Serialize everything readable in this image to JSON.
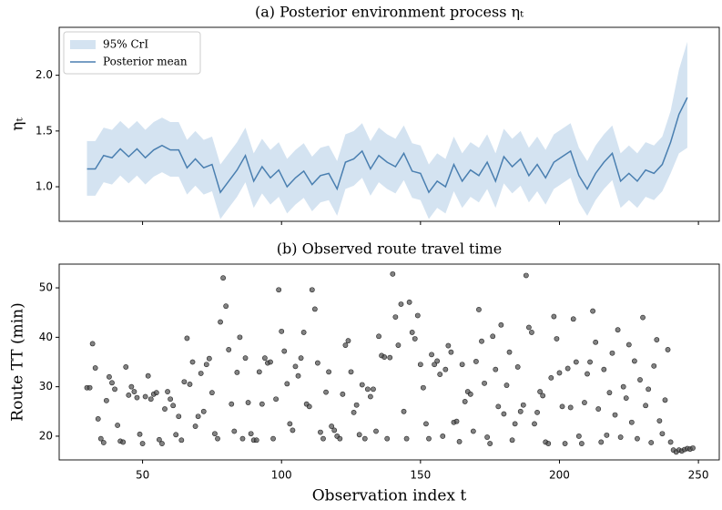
{
  "chart_data": [
    {
      "type": "line",
      "title": "(a) Posterior environment process ηₜ",
      "ylabel": "ηₜ",
      "x": [
        30,
        33,
        36,
        39,
        42,
        45,
        48,
        51,
        54,
        57,
        60,
        63,
        66,
        69,
        72,
        75,
        78,
        81,
        84,
        87,
        90,
        93,
        96,
        99,
        102,
        105,
        108,
        111,
        114,
        117,
        120,
        123,
        126,
        129,
        132,
        135,
        138,
        141,
        144,
        147,
        150,
        153,
        156,
        159,
        162,
        165,
        168,
        171,
        174,
        177,
        180,
        183,
        186,
        189,
        192,
        195,
        198,
        201,
        204,
        207,
        210,
        213,
        216,
        219,
        222,
        225,
        228,
        231,
        234,
        237,
        240,
        243,
        246
      ],
      "series": [
        {
          "name": "Posterior mean",
          "color": "#4a7fb0",
          "values": [
            1.16,
            1.16,
            1.28,
            1.26,
            1.34,
            1.27,
            1.34,
            1.26,
            1.33,
            1.37,
            1.33,
            1.33,
            1.17,
            1.25,
            1.17,
            1.2,
            0.95,
            1.05,
            1.15,
            1.28,
            1.05,
            1.18,
            1.08,
            1.15,
            1.0,
            1.08,
            1.14,
            1.02,
            1.1,
            1.12,
            0.98,
            1.22,
            1.25,
            1.32,
            1.16,
            1.28,
            1.22,
            1.18,
            1.3,
            1.14,
            1.12,
            0.95,
            1.05,
            1.0,
            1.2,
            1.05,
            1.15,
            1.1,
            1.22,
            1.05,
            1.27,
            1.18,
            1.25,
            1.1,
            1.2,
            1.08,
            1.22,
            1.27,
            1.32,
            1.1,
            0.98,
            1.12,
            1.22,
            1.3,
            1.05,
            1.12,
            1.05,
            1.15,
            1.12,
            1.2,
            1.4,
            1.65,
            1.8
          ]
        }
      ],
      "band": {
        "name": "95% CrI",
        "color": "#d4e3f1",
        "upper": [
          1.41,
          1.41,
          1.53,
          1.51,
          1.59,
          1.52,
          1.59,
          1.51,
          1.58,
          1.62,
          1.58,
          1.58,
          1.42,
          1.5,
          1.42,
          1.45,
          1.2,
          1.3,
          1.4,
          1.53,
          1.3,
          1.43,
          1.33,
          1.4,
          1.25,
          1.33,
          1.39,
          1.27,
          1.35,
          1.37,
          1.23,
          1.47,
          1.5,
          1.57,
          1.41,
          1.53,
          1.47,
          1.43,
          1.55,
          1.39,
          1.37,
          1.2,
          1.3,
          1.25,
          1.45,
          1.3,
          1.4,
          1.35,
          1.47,
          1.3,
          1.52,
          1.43,
          1.5,
          1.35,
          1.45,
          1.33,
          1.47,
          1.52,
          1.57,
          1.35,
          1.23,
          1.37,
          1.47,
          1.55,
          1.3,
          1.37,
          1.3,
          1.4,
          1.37,
          1.45,
          1.68,
          2.05,
          2.3
        ],
        "lower": [
          0.92,
          0.92,
          1.04,
          1.02,
          1.1,
          1.03,
          1.1,
          1.02,
          1.09,
          1.13,
          1.09,
          1.09,
          0.93,
          1.01,
          0.93,
          0.96,
          0.71,
          0.81,
          0.91,
          1.04,
          0.81,
          0.94,
          0.84,
          0.91,
          0.76,
          0.84,
          0.9,
          0.78,
          0.86,
          0.88,
          0.74,
          0.98,
          1.01,
          1.08,
          0.92,
          1.04,
          0.98,
          0.94,
          1.06,
          0.9,
          0.88,
          0.71,
          0.81,
          0.76,
          0.96,
          0.81,
          0.91,
          0.86,
          0.98,
          0.81,
          1.03,
          0.94,
          1.01,
          0.86,
          0.96,
          0.84,
          0.98,
          1.03,
          1.08,
          0.86,
          0.74,
          0.88,
          0.98,
          1.06,
          0.81,
          0.88,
          0.81,
          0.91,
          0.88,
          0.96,
          1.12,
          1.3,
          1.35
        ]
      },
      "xlim": [
        20,
        257.5
      ],
      "ylim": [
        0.69,
        2.43
      ],
      "xticks": [
        50,
        100,
        150,
        200,
        250
      ],
      "yticks": [
        {
          "value": 1,
          "label": "1.0"
        },
        {
          "value": 1.5,
          "label": "1.5"
        },
        {
          "value": 2,
          "label": "2.0"
        }
      ],
      "legend": "upper left"
    },
    {
      "type": "scatter",
      "title": "(b) Observed route travel time",
      "xlabel": "Observation index t",
      "ylabel": "Route TT (min)",
      "color": "#4d4d4d",
      "x": [
        30,
        31,
        32,
        33,
        34,
        35,
        36,
        37,
        38,
        39,
        40,
        41,
        42,
        43,
        44,
        45,
        46,
        47,
        48,
        49,
        50,
        51,
        52,
        53,
        54,
        55,
        56,
        57,
        58,
        59,
        60,
        61,
        62,
        63,
        64,
        65,
        66,
        67,
        68,
        69,
        70,
        71,
        72,
        73,
        74,
        75,
        76,
        77,
        78,
        79,
        80,
        81,
        82,
        83,
        84,
        85,
        86,
        87,
        88,
        89,
        90,
        91,
        92,
        93,
        94,
        95,
        96,
        97,
        98,
        99,
        100,
        101,
        102,
        103,
        104,
        105,
        106,
        107,
        108,
        109,
        110,
        111,
        112,
        113,
        114,
        115,
        116,
        117,
        118,
        119,
        120,
        121,
        122,
        123,
        124,
        125,
        126,
        127,
        128,
        129,
        130,
        131,
        132,
        133,
        134,
        135,
        136,
        137,
        138,
        139,
        140,
        141,
        142,
        143,
        144,
        145,
        146,
        147,
        148,
        149,
        150,
        151,
        152,
        153,
        154,
        155,
        156,
        157,
        158,
        159,
        160,
        161,
        162,
        163,
        164,
        165,
        166,
        167,
        168,
        169,
        170,
        171,
        172,
        173,
        174,
        175,
        176,
        177,
        178,
        179,
        180,
        181,
        182,
        183,
        184,
        185,
        186,
        187,
        188,
        189,
        190,
        191,
        192,
        193,
        194,
        195,
        196,
        197,
        198,
        199,
        200,
        201,
        202,
        203,
        204,
        205,
        206,
        207,
        208,
        209,
        210,
        211,
        212,
        213,
        214,
        215,
        216,
        217,
        218,
        219,
        220,
        221,
        222,
        223,
        224,
        225,
        226,
        227,
        228,
        229,
        230,
        231,
        232,
        233,
        234,
        235,
        236,
        237,
        238,
        239,
        240,
        241,
        242,
        243,
        244,
        245,
        246,
        247,
        248
      ],
      "values": [
        29.8,
        29.8,
        38.7,
        33.8,
        23.5,
        19.5,
        18.7,
        27.2,
        32,
        30.8,
        29.5,
        22.2,
        19,
        18.8,
        34,
        28.3,
        30,
        29,
        27.8,
        20.4,
        18.5,
        28,
        32.2,
        27.5,
        28.5,
        28.8,
        19.3,
        18.5,
        25.5,
        29,
        27.5,
        26.2,
        20.3,
        24,
        19.2,
        31,
        39.8,
        30.5,
        35,
        22,
        24,
        32.7,
        25,
        34.5,
        35.7,
        28.8,
        20.5,
        19.5,
        43.1,
        52,
        46.3,
        37.5,
        26.5,
        21,
        32.9,
        40,
        19.5,
        35.8,
        26.8,
        20.5,
        19.2,
        19.2,
        33,
        26.5,
        35.8,
        34.8,
        35,
        19.5,
        27.5,
        49.6,
        41.2,
        37.2,
        30.6,
        22.5,
        21.2,
        34.1,
        32.2,
        35.8,
        41,
        26.5,
        26,
        49.6,
        45.7,
        34.8,
        20.8,
        19.5,
        28.9,
        33,
        22,
        21.2,
        20,
        19.5,
        28.5,
        38.4,
        39.3,
        33,
        24.8,
        26.3,
        20.3,
        30.4,
        19.5,
        29.5,
        28,
        29.5,
        21,
        40.2,
        36.3,
        36,
        19.5,
        35.9,
        52.8,
        44.1,
        38.4,
        46.7,
        25,
        19.5,
        47.1,
        41,
        39.7,
        44.4,
        34.5,
        29.8,
        22.5,
        19.5,
        36.5,
        34.5,
        35.2,
        32.5,
        20,
        33.5,
        38.3,
        37,
        22.8,
        23,
        18.9,
        34.5,
        27,
        29,
        28.5,
        21,
        35.1,
        45.6,
        39.2,
        30.7,
        19.8,
        18.5,
        40.2,
        33.5,
        26,
        42.5,
        24.5,
        30.3,
        37,
        19.2,
        22.5,
        34,
        25,
        26.3,
        52.5,
        42,
        41,
        22.5,
        24.8,
        29,
        28.2,
        18.8,
        18.5,
        31.8,
        44.2,
        39.7,
        32.8,
        26,
        18.5,
        33.7,
        25.8,
        43.7,
        35,
        20,
        18.5,
        26.8,
        32.6,
        35,
        45.3,
        39,
        25.5,
        18.8,
        33.5,
        20.2,
        28.8,
        36.8,
        24.3,
        41.5,
        19.8,
        30,
        27.7,
        38.5,
        22.8,
        35.2,
        19.5,
        31.4,
        44,
        26.2,
        29.5,
        18.7,
        34.2,
        39.5,
        23.1,
        20.5,
        27.3,
        37.5,
        18.8,
        17.2,
        16.8,
        17.2,
        17,
        17.3,
        17.5,
        17.4,
        17.6
      ],
      "xlim": [
        20,
        257.5
      ],
      "ylim": [
        15.2,
        54.8
      ],
      "xticks": [
        50,
        100,
        150,
        200,
        250
      ],
      "yticks": [
        20,
        30,
        40,
        50
      ]
    }
  ]
}
